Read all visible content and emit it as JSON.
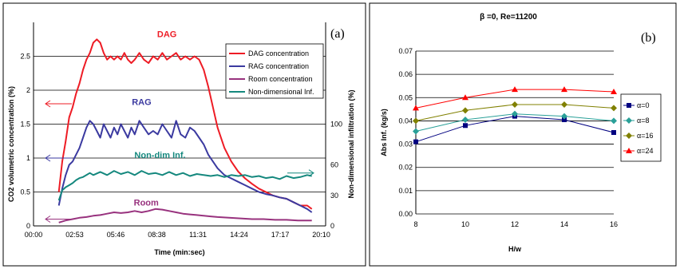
{
  "chart_data": [
    {
      "type": "line",
      "panel_label": "(a)",
      "xlabel": "Time (min:sec)",
      "ylabel": "CO2 volumetric concentration (%)",
      "y2label": "Non-dimensional infiltration (%)",
      "x_tick_labels": [
        "00:00",
        "02:53",
        "05:46",
        "08:38",
        "11:31",
        "14:24",
        "17:17",
        "20:10"
      ],
      "xlim": [
        0,
        1270
      ],
      "ylim": [
        0,
        3
      ],
      "y_ticks": [
        "0",
        "0.5",
        "1",
        "1.5",
        "2",
        "2.5"
      ],
      "y2_ticks": [
        "0",
        "30",
        "60",
        "100"
      ],
      "grid": "horizontal",
      "legend_position": "top-right",
      "series": [
        {
          "name": "DAG concentration",
          "color": "#ee1c25",
          "x": [
            110,
            125,
            140,
            155,
            170,
            185,
            200,
            215,
            230,
            245,
            260,
            275,
            290,
            305,
            320,
            335,
            350,
            365,
            380,
            395,
            410,
            425,
            440,
            460,
            480,
            500,
            520,
            540,
            560,
            580,
            600,
            620,
            640,
            660,
            680,
            700,
            720,
            740,
            760,
            780,
            800,
            830,
            860,
            890,
            920,
            950,
            980,
            1010,
            1040,
            1070,
            1100,
            1130,
            1160,
            1190,
            1210
          ],
          "y": [
            0.5,
            0.95,
            1.25,
            1.6,
            1.75,
            1.95,
            2.1,
            2.3,
            2.45,
            2.55,
            2.7,
            2.75,
            2.7,
            2.55,
            2.45,
            2.5,
            2.45,
            2.5,
            2.45,
            2.55,
            2.45,
            2.4,
            2.45,
            2.55,
            2.45,
            2.4,
            2.5,
            2.45,
            2.55,
            2.45,
            2.5,
            2.55,
            2.45,
            2.5,
            2.45,
            2.5,
            2.45,
            2.3,
            2.05,
            1.75,
            1.45,
            1.15,
            0.95,
            0.8,
            0.7,
            0.62,
            0.55,
            0.5,
            0.45,
            0.42,
            0.4,
            0.35,
            0.3,
            0.3,
            0.25
          ]
        },
        {
          "name": "RAG concentration",
          "color": "#3b3aa0",
          "x": [
            110,
            125,
            140,
            155,
            170,
            185,
            200,
            215,
            230,
            245,
            260,
            275,
            290,
            305,
            320,
            335,
            350,
            365,
            380,
            395,
            410,
            425,
            440,
            460,
            480,
            500,
            520,
            540,
            560,
            580,
            600,
            620,
            640,
            660,
            680,
            700,
            720,
            740,
            760,
            780,
            800,
            830,
            860,
            890,
            920,
            950,
            980,
            1010,
            1040,
            1070,
            1100,
            1130,
            1160,
            1190,
            1210
          ],
          "y": [
            0.3,
            0.55,
            0.75,
            0.9,
            0.95,
            1.05,
            1.15,
            1.3,
            1.45,
            1.55,
            1.5,
            1.4,
            1.3,
            1.5,
            1.4,
            1.3,
            1.45,
            1.35,
            1.5,
            1.4,
            1.3,
            1.45,
            1.35,
            1.55,
            1.45,
            1.35,
            1.4,
            1.35,
            1.5,
            1.4,
            1.3,
            1.55,
            1.35,
            1.3,
            1.45,
            1.4,
            1.3,
            1.2,
            1.05,
            0.95,
            0.85,
            0.75,
            0.7,
            0.65,
            0.6,
            0.55,
            0.5,
            0.47,
            0.45,
            0.42,
            0.4,
            0.35,
            0.3,
            0.25,
            0.2
          ]
        },
        {
          "name": "Room concentration",
          "color": "#98327e",
          "x": [
            110,
            140,
            170,
            200,
            230,
            260,
            290,
            320,
            350,
            380,
            410,
            440,
            470,
            500,
            530,
            560,
            590,
            620,
            650,
            680,
            710,
            740,
            770,
            800,
            850,
            900,
            950,
            1000,
            1050,
            1100,
            1150,
            1210
          ],
          "y": [
            0.05,
            0.08,
            0.1,
            0.12,
            0.13,
            0.15,
            0.16,
            0.18,
            0.2,
            0.19,
            0.2,
            0.22,
            0.2,
            0.22,
            0.25,
            0.24,
            0.22,
            0.2,
            0.18,
            0.17,
            0.16,
            0.15,
            0.14,
            0.13,
            0.12,
            0.11,
            0.1,
            0.1,
            0.09,
            0.09,
            0.08,
            0.08
          ]
        },
        {
          "name": "Non-dimensional Inf.",
          "color": "#15887e",
          "axis": "y2",
          "x": [
            110,
            125,
            140,
            155,
            170,
            185,
            200,
            215,
            230,
            245,
            260,
            290,
            320,
            350,
            380,
            410,
            440,
            470,
            500,
            530,
            560,
            590,
            620,
            650,
            680,
            710,
            740,
            770,
            800,
            830,
            860,
            890,
            920,
            950,
            980,
            1010,
            1040,
            1070,
            1100,
            1130,
            1160,
            1190,
            1210
          ],
          "y": [
            25,
            35,
            38,
            40,
            42,
            45,
            47,
            48,
            50,
            52,
            50,
            53,
            50,
            54,
            51,
            53,
            50,
            54,
            51,
            52,
            50,
            53,
            50,
            52,
            49,
            51,
            50,
            49,
            50,
            48,
            50,
            49,
            50,
            48,
            49,
            47,
            48,
            46,
            49,
            47,
            48,
            50,
            49
          ]
        }
      ],
      "annotations": [
        {
          "text": "DAG",
          "color": "#ee1c25",
          "x": 580,
          "y": 2.78
        },
        {
          "text": "RAG",
          "color": "#3b3aa0",
          "x": 470,
          "y": 1.78
        },
        {
          "text": "Non-dim Inf.",
          "color": "#15887e",
          "x": 550,
          "y": 1.0
        },
        {
          "text": "Room",
          "color": "#98327e",
          "x": 490,
          "y": 0.3
        }
      ],
      "arrows": [
        {
          "color": "#ee1c25",
          "y": 1.8,
          "direction": "left"
        },
        {
          "color": "#3b3aa0",
          "y": 1.0,
          "direction": "left"
        },
        {
          "color": "#15887e",
          "y": 0.78,
          "direction": "right"
        },
        {
          "color": "#98327e",
          "y": 0.1,
          "direction": "left"
        }
      ]
    },
    {
      "type": "line",
      "panel_label": "(b)",
      "title": "β =0, Re=11200",
      "xlabel": "H/w",
      "ylabel": "Abs Inf. (kg/s)",
      "categories": [
        "8",
        "10",
        "12",
        "14",
        "16"
      ],
      "ylim": [
        0,
        0.07
      ],
      "y_ticks": [
        "0.00",
        "0.01",
        "0.02",
        "0.03",
        "0.04",
        "0.05",
        "0.06",
        "0.07"
      ],
      "grid": "horizontal",
      "legend_position": "right",
      "series": [
        {
          "name": "α=0",
          "color": "#000080",
          "marker": "square",
          "values": [
            0.031,
            0.038,
            0.042,
            0.0405,
            0.035
          ]
        },
        {
          "name": "α=8",
          "color": "#2aa098",
          "marker": "diamond",
          "values": [
            0.0355,
            0.0405,
            0.043,
            0.042,
            0.04
          ]
        },
        {
          "name": "α=16",
          "color": "#808000",
          "marker": "diamond",
          "values": [
            0.04,
            0.0445,
            0.047,
            0.047,
            0.0455
          ]
        },
        {
          "name": "α=24",
          "color": "#ff0000",
          "marker": "triangle",
          "values": [
            0.0455,
            0.05,
            0.0535,
            0.0535,
            0.0525
          ]
        }
      ]
    }
  ]
}
